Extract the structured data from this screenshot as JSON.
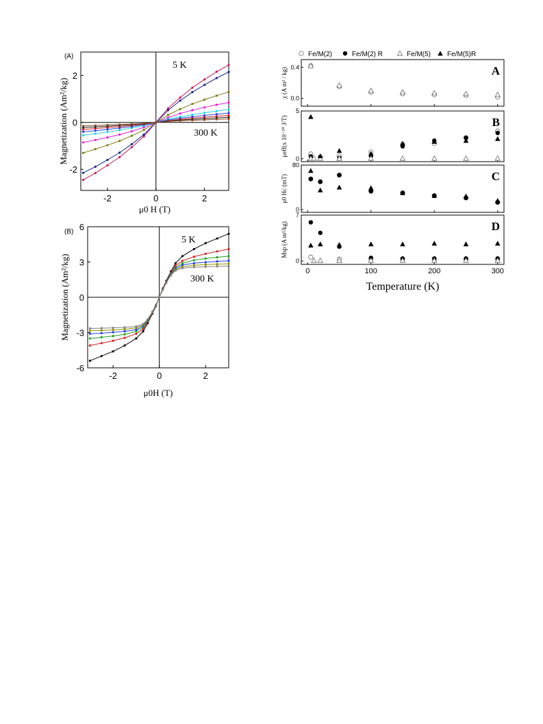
{
  "chart_data": [
    {
      "type": "line",
      "panel_label": "(A)",
      "xlabel": "μ0 H (T)",
      "ylabel": "Magnetization (Am²/kg)",
      "xlim": [
        -3.1,
        3.0
      ],
      "ylim": [
        -2.9,
        3.0
      ],
      "x_ticks": [
        -2,
        0,
        2
      ],
      "y_ticks": [
        -2,
        0,
        2
      ],
      "annotations": [
        "5 K",
        "300 K"
      ],
      "x": [
        -3,
        -2.5,
        -2,
        -1.5,
        -1,
        -0.5,
        0,
        0.5,
        1,
        1.5,
        2,
        2.5,
        3
      ],
      "series": [
        {
          "color": "#c0185a",
          "values": [
            -2.45,
            -2.16,
            -1.83,
            -1.48,
            -1.06,
            -0.6,
            0,
            0.6,
            1.06,
            1.48,
            1.83,
            2.16,
            2.45
          ]
        },
        {
          "color": "#1a1f8c",
          "values": [
            -2.15,
            -1.89,
            -1.6,
            -1.29,
            -0.93,
            -0.52,
            0,
            0.52,
            0.93,
            1.29,
            1.6,
            1.89,
            2.15
          ]
        },
        {
          "color": "#7a7a10",
          "values": [
            -1.3,
            -1.14,
            -0.97,
            -0.79,
            -0.57,
            -0.32,
            0,
            0.32,
            0.57,
            0.79,
            0.97,
            1.14,
            1.3
          ]
        },
        {
          "color": "#e020d0",
          "values": [
            -0.85,
            -0.75,
            -0.64,
            -0.52,
            -0.38,
            -0.21,
            0,
            0.21,
            0.38,
            0.52,
            0.64,
            0.75,
            0.85
          ]
        },
        {
          "color": "#2bd0e0",
          "values": [
            -0.55,
            -0.48,
            -0.41,
            -0.33,
            -0.24,
            -0.14,
            0,
            0.14,
            0.24,
            0.33,
            0.41,
            0.48,
            0.55
          ]
        },
        {
          "color": "#2040e0",
          "values": [
            -0.4,
            -0.35,
            -0.3,
            -0.24,
            -0.18,
            -0.1,
            0,
            0.1,
            0.18,
            0.24,
            0.3,
            0.35,
            0.4
          ]
        },
        {
          "color": "#d02020",
          "values": [
            -0.3,
            -0.26,
            -0.22,
            -0.18,
            -0.13,
            -0.07,
            0,
            0.07,
            0.13,
            0.18,
            0.22,
            0.26,
            0.3
          ]
        },
        {
          "color": "#202020",
          "values": [
            -0.22,
            -0.19,
            -0.16,
            -0.13,
            -0.1,
            -0.05,
            0,
            0.05,
            0.1,
            0.13,
            0.16,
            0.19,
            0.22
          ]
        },
        {
          "color": "#8a4a20",
          "values": [
            -0.15,
            -0.13,
            -0.11,
            -0.09,
            -0.07,
            -0.04,
            0,
            0.04,
            0.07,
            0.09,
            0.11,
            0.13,
            0.15
          ]
        }
      ]
    },
    {
      "type": "line",
      "panel_label": "(B)",
      "xlabel": "μ0H (T)",
      "ylabel": "Magnetization (Am²/kg)",
      "xlim": [
        -3.1,
        3.0
      ],
      "ylim": [
        -6,
        6
      ],
      "x_ticks": [
        -2,
        0,
        2
      ],
      "y_ticks": [
        -6,
        -3,
        0,
        3,
        6
      ],
      "annotations": [
        "5 K",
        "300 K"
      ],
      "x": [
        -3,
        -2.5,
        -2,
        -1.5,
        -1,
        -0.7,
        -0.5,
        -0.3,
        -0.15,
        0,
        0.15,
        0.3,
        0.5,
        0.7,
        1,
        1.5,
        2,
        2.5,
        3
      ],
      "series": [
        {
          "color": "#000000",
          "values": [
            -5.4,
            -5.0,
            -4.6,
            -4.1,
            -3.5,
            -2.9,
            -2.2,
            -1.4,
            -0.75,
            0,
            0.75,
            1.4,
            2.2,
            2.9,
            3.5,
            4.1,
            4.6,
            5.0,
            5.4
          ]
        },
        {
          "color": "#d02020",
          "values": [
            -4.1,
            -3.9,
            -3.7,
            -3.45,
            -3.1,
            -2.7,
            -2.1,
            -1.35,
            -0.7,
            0,
            0.7,
            1.35,
            2.1,
            2.7,
            3.1,
            3.45,
            3.7,
            3.9,
            4.1
          ]
        },
        {
          "color": "#20a020",
          "values": [
            -3.5,
            -3.4,
            -3.3,
            -3.15,
            -2.9,
            -2.55,
            -2.0,
            -1.3,
            -0.68,
            0,
            0.68,
            1.3,
            2.0,
            2.55,
            2.9,
            3.15,
            3.3,
            3.4,
            3.5
          ]
        },
        {
          "color": "#2040e0",
          "values": [
            -3.1,
            -3.05,
            -2.98,
            -2.9,
            -2.75,
            -2.45,
            -1.95,
            -1.27,
            -0.66,
            0,
            0.66,
            1.27,
            1.95,
            2.45,
            2.75,
            2.9,
            2.98,
            3.05,
            3.1
          ]
        },
        {
          "color": "#909000",
          "values": [
            -2.85,
            -2.82,
            -2.78,
            -2.72,
            -2.6,
            -2.35,
            -1.9,
            -1.24,
            -0.64,
            0,
            0.64,
            1.24,
            1.9,
            2.35,
            2.6,
            2.72,
            2.78,
            2.82,
            2.85
          ]
        },
        {
          "color": "#808080",
          "values": [
            -2.65,
            -2.63,
            -2.6,
            -2.56,
            -2.48,
            -2.28,
            -1.86,
            -1.22,
            -0.63,
            0,
            0.63,
            1.22,
            1.86,
            2.28,
            2.48,
            2.56,
            2.6,
            2.63,
            2.65
          ]
        }
      ]
    },
    {
      "type": "scatter",
      "panel_label": "A",
      "ylabel": "χ (A m² / kg)",
      "xlim": [
        -10,
        310
      ],
      "ylim": [
        -0.1,
        0.5
      ],
      "y_ticks": [
        0.0,
        0.4
      ],
      "x_ticks": [
        0,
        100,
        200,
        300
      ],
      "x": [
        5,
        50,
        100,
        150,
        200,
        250,
        300
      ],
      "series": [
        {
          "name": "Fe/M(2)",
          "values": [
            0.42,
            0.15,
            0.08,
            0.06,
            0.05,
            0.04,
            0.02
          ]
        },
        {
          "name": "Fe/M(5)",
          "values": [
            0.42,
            0.17,
            0.1,
            0.08,
            0.07,
            0.06,
            0.05
          ]
        }
      ]
    },
    {
      "type": "scatter",
      "panel_label": "B",
      "ylabel": "μeff(x 10⁻²⁰ J/T)",
      "xlim": [
        -10,
        310
      ],
      "ylim": [
        -0.3,
        5
      ],
      "y_ticks": [
        0,
        5
      ],
      "x_ticks": [
        0,
        100,
        200,
        300
      ],
      "series": [
        {
          "name": "Fe/M(2)",
          "x": [
            5,
            50,
            100,
            150,
            200,
            250,
            300
          ],
          "values": [
            0.5,
            0.3,
            0.7,
            1.5,
            1.6,
            2.2,
            2.9
          ]
        },
        {
          "name": "Fe/M(2) R",
          "x": [
            5,
            20,
            50,
            100,
            150,
            200,
            250,
            300
          ],
          "values": [
            0.25,
            0.2,
            0.1,
            0.3,
            1.3,
            1.9,
            2.2,
            2.7
          ]
        },
        {
          "name": "Fe/M(5)",
          "x": [
            5,
            10,
            20,
            50,
            100,
            150,
            200,
            250,
            300
          ],
          "values": [
            0.05,
            0.05,
            0.05,
            0.05,
            0.05,
            0.05,
            0.05,
            0.05,
            0.05
          ]
        },
        {
          "name": "Fe/M(5)R",
          "x": [
            5,
            20,
            50,
            100,
            150,
            200,
            250,
            300
          ],
          "values": [
            4.4,
            0.3,
            0.85,
            0.55,
            1.6,
            1.8,
            1.9,
            2.1
          ]
        }
      ]
    },
    {
      "type": "scatter",
      "panel_label": "C",
      "ylabel": "μ0 Hc (mT)",
      "xlim": [
        -10,
        310
      ],
      "ylim": [
        -5,
        80
      ],
      "y_ticks": [
        0,
        80
      ],
      "x_ticks": [
        0,
        100,
        200,
        300
      ],
      "series": [
        {
          "name": "Fe/M(2)",
          "x": [
            5,
            20,
            50,
            100,
            150,
            200,
            250,
            300
          ],
          "values": [
            55,
            50,
            62,
            33,
            30,
            25,
            21,
            13
          ]
        },
        {
          "name": "Fe/M(2) R",
          "x": [
            5,
            20,
            50,
            100,
            150,
            200,
            250,
            300
          ],
          "values": [
            55,
            50,
            62,
            33,
            30,
            25,
            21,
            13
          ]
        },
        {
          "name": "Fe/M(5)R",
          "x": [
            5,
            20,
            50,
            100,
            150,
            200,
            250,
            300
          ],
          "values": [
            70,
            35,
            40,
            39,
            30,
            25,
            24,
            16
          ]
        }
      ]
    },
    {
      "type": "scatter",
      "panel_label": "D",
      "ylabel": "Msp (A m²/kg)",
      "xlabel": "Temperature (K)",
      "xlim": [
        -10,
        310
      ],
      "ylim": [
        -0.5,
        7
      ],
      "y_ticks": [
        0,
        7
      ],
      "x_ticks": [
        0,
        100,
        200,
        300
      ],
      "x_ticklabels": [
        "0",
        "100",
        "200",
        "300"
      ],
      "series": [
        {
          "name": "Fe/M(2)",
          "x": [
            5,
            50,
            100,
            150,
            200,
            250,
            300
          ],
          "values": [
            0.6,
            0.3,
            0.3,
            0.3,
            0.3,
            0.3,
            0.3
          ]
        },
        {
          "name": "Fe/M(2) R",
          "x": [
            5,
            20,
            50,
            100,
            150,
            200,
            250,
            300
          ],
          "values": [
            5.9,
            4.3,
            2.2,
            0.5,
            0.4,
            0.4,
            0.4,
            0.4
          ]
        },
        {
          "name": "Fe/M(5)",
          "x": [
            10,
            20,
            50,
            100,
            150,
            200,
            250,
            300
          ],
          "values": [
            0.1,
            0.1,
            0.1,
            0.1,
            0.1,
            0.1,
            0.1,
            0.1
          ]
        },
        {
          "name": "Fe/M(5)R",
          "x": [
            5,
            20,
            50,
            100,
            150,
            200,
            250,
            300
          ],
          "values": [
            2.4,
            2.6,
            2.5,
            2.6,
            2.6,
            2.7,
            2.6,
            2.7
          ]
        }
      ]
    }
  ],
  "legend": {
    "entries": [
      "Fe/M(2)",
      "Fe/M(2) R",
      "Fe/M(5)",
      "Fe/M(5)R"
    ],
    "markers": [
      "open-circle",
      "filled-circle",
      "open-triangle",
      "filled-triangle"
    ]
  }
}
